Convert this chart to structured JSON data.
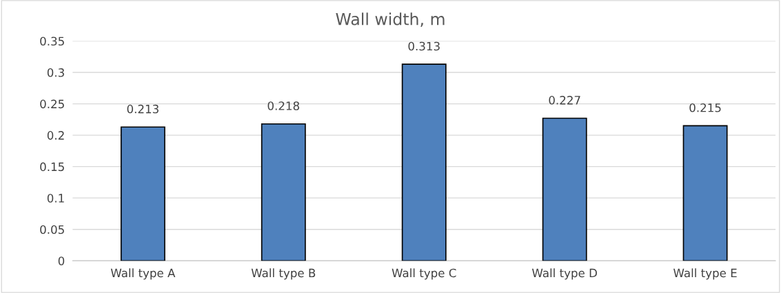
{
  "chart_data": {
    "type": "bar",
    "title": "Wall width, m",
    "categories": [
      "Wall type A",
      "Wall type B",
      "Wall type C",
      "Wall type D",
      "Wall type E"
    ],
    "values": [
      0.213,
      0.218,
      0.313,
      0.227,
      0.215
    ],
    "color": "#4f81bd",
    "ylim": [
      0,
      0.35
    ],
    "yticks": [
      0,
      0.05,
      0.1,
      0.15,
      0.2,
      0.25,
      0.3,
      0.35
    ],
    "grid": "y",
    "data_labels": true
  }
}
